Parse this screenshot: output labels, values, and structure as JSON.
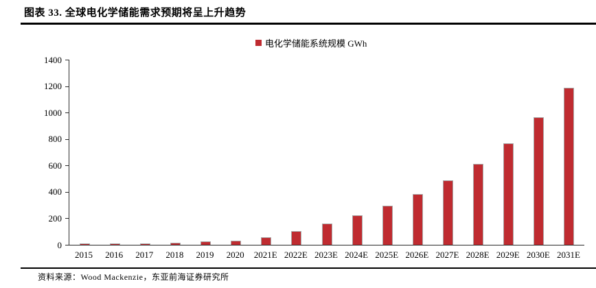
{
  "header": {
    "title": "图表 33. 全球电化学储能需求预期将呈上升趋势"
  },
  "footer": {
    "source": "资料来源：Wood Mackenzie，东亚前海证券研究所"
  },
  "colors": {
    "bar_fill": "#bf2b30",
    "bar_border": "#a8a8a8",
    "axis": "#2b2b2b",
    "text": "#000000"
  },
  "chart_data": {
    "type": "bar",
    "title": "图表 33. 全球电化学储能需求预期将呈上升趋势",
    "legend": [
      "电化学储能系统规模 GWh"
    ],
    "legend_position": "top-center",
    "categories": [
      "2015",
      "2016",
      "2017",
      "2018",
      "2019",
      "2020",
      "2021E",
      "2022E",
      "2023E",
      "2024E",
      "2025E",
      "2026E",
      "2027E",
      "2028E",
      "2029E",
      "2030E",
      "2031E"
    ],
    "values": [
      5,
      5,
      9,
      18,
      24,
      33,
      56,
      104,
      162,
      225,
      296,
      385,
      490,
      614,
      770,
      967,
      1185
    ],
    "xlabel": "",
    "ylabel": "",
    "unit": "GWh",
    "ylim": [
      0,
      1400
    ],
    "ytick_step": 200,
    "yticks": [
      0,
      200,
      400,
      600,
      800,
      1000,
      1200,
      1400
    ],
    "grid": false
  }
}
